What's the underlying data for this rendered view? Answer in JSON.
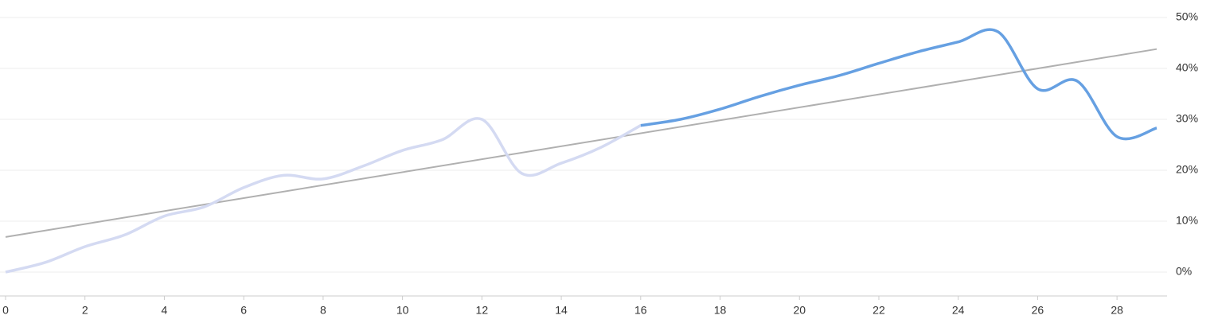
{
  "chart_data": {
    "type": "line",
    "x": [
      0,
      1,
      2,
      3,
      4,
      5,
      6,
      7,
      8,
      9,
      10,
      11,
      12,
      13,
      14,
      15,
      16,
      17,
      18,
      19,
      20,
      21,
      22,
      23,
      24,
      25,
      26,
      27,
      28,
      29
    ],
    "series": [
      {
        "color": "#d4daf2",
        "values": [
          0,
          1.9,
          5,
          7.3,
          11,
          12.8,
          16.6,
          19,
          18.3,
          20.8,
          23.9,
          26,
          30,
          19.4,
          21.4,
          24.5,
          28.8,
          null,
          null,
          null,
          null,
          null,
          null,
          null,
          null,
          null,
          null,
          null,
          null,
          null
        ]
      },
      {
        "color": "#66a0e2",
        "values": [
          null,
          null,
          null,
          null,
          null,
          null,
          null,
          null,
          null,
          null,
          null,
          null,
          null,
          null,
          null,
          null,
          28.8,
          30,
          32,
          34.5,
          36.7,
          38.6,
          41,
          43.3,
          45.2,
          47.2,
          36,
          37.5,
          26.6,
          28.3
        ]
      }
    ],
    "trendline": {
      "color": "#b0b0b0",
      "x": [
        0,
        29
      ],
      "values": [
        6.9,
        43.8
      ]
    },
    "xlim": [
      0,
      29
    ],
    "xticks": [
      0,
      2,
      4,
      6,
      8,
      10,
      12,
      14,
      16,
      18,
      20,
      22,
      24,
      26,
      28
    ],
    "ylim": [
      -5,
      52
    ],
    "yticks": [
      {
        "value": 0,
        "label": "0%"
      },
      {
        "value": 10,
        "label": "10%"
      },
      {
        "value": 20,
        "label": "20%"
      },
      {
        "value": 30,
        "label": "30%"
      },
      {
        "value": 40,
        "label": "40%"
      },
      {
        "value": 50,
        "label": "50%"
      }
    ],
    "grid": true
  }
}
